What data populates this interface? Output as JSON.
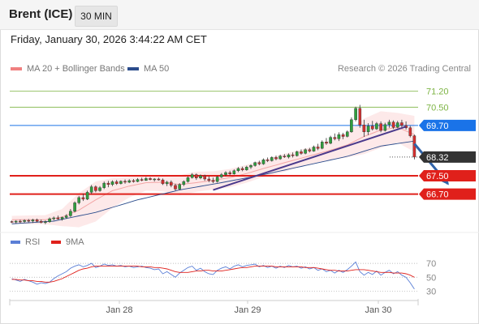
{
  "header": {
    "title": "Brent (ICE)",
    "interval": "30 MIN"
  },
  "datetime": "Friday, January 30, 2026 3:44:22 AM CET",
  "legend": {
    "bollinger": {
      "label": "MA 20 + Bollinger Bands",
      "color": "#f08080"
    },
    "ma50": {
      "label": "MA 50",
      "color": "#2b4c8c"
    }
  },
  "copyright": "Research © 2026 Trading Central",
  "rsi_legend": {
    "rsi": {
      "label": "RSI",
      "color": "#5b7fd6"
    },
    "ma9": {
      "label": "9MA",
      "color": "#e0201b"
    }
  },
  "chart_data": [
    {
      "type": "candlestick",
      "title": "",
      "x_ticks": [
        "Jan 28",
        "Jan 29",
        "Jan 30"
      ],
      "ylim": [
        65.2,
        71.75
      ],
      "levels": [
        {
          "label": "71.20",
          "value": 71.2,
          "kind": "resistance-thin",
          "color": "#7cb342",
          "tag_bg": "",
          "tag_color": "#7cb342"
        },
        {
          "label": "70.50",
          "value": 70.5,
          "kind": "resistance-thin",
          "color": "#7cb342",
          "tag_bg": "",
          "tag_color": "#7cb342"
        },
        {
          "label": "69.70",
          "value": 69.7,
          "kind": "pivot",
          "color": "#1a73e8",
          "tag_bg": "#1a73e8",
          "tag_color": "#ffffff"
        },
        {
          "label": "68.32",
          "value": 68.32,
          "kind": "last-price",
          "color": "#333333",
          "tag_bg": "#333333",
          "tag_color": "#ffffff"
        },
        {
          "label": "67.50",
          "value": 67.5,
          "kind": "support",
          "color": "#e0201b",
          "tag_bg": "#e0201b",
          "tag_color": "#ffffff"
        },
        {
          "label": "66.70",
          "value": 66.7,
          "kind": "support",
          "color": "#e0201b",
          "tag_bg": "#e0201b",
          "tag_color": "#ffffff"
        }
      ],
      "candles": [
        [
          65.5,
          65.54,
          65.44,
          65.48
        ],
        [
          65.48,
          65.56,
          65.41,
          65.52
        ],
        [
          65.52,
          65.58,
          65.43,
          65.5
        ],
        [
          65.5,
          65.6,
          65.45,
          65.55
        ],
        [
          65.55,
          65.61,
          65.47,
          65.52
        ],
        [
          65.52,
          65.62,
          65.44,
          65.57
        ],
        [
          65.57,
          65.63,
          65.46,
          65.51
        ],
        [
          65.51,
          65.59,
          65.42,
          65.46
        ],
        [
          65.46,
          65.55,
          65.38,
          65.49
        ],
        [
          65.49,
          65.68,
          65.45,
          65.62
        ],
        [
          65.62,
          65.72,
          65.55,
          65.66
        ],
        [
          65.66,
          65.76,
          65.58,
          65.61
        ],
        [
          65.61,
          65.72,
          65.54,
          65.68
        ],
        [
          65.68,
          65.82,
          65.62,
          65.75
        ],
        [
          65.75,
          66.05,
          65.7,
          65.95
        ],
        [
          65.95,
          66.38,
          65.9,
          66.32
        ],
        [
          66.32,
          66.62,
          66.25,
          66.55
        ],
        [
          66.55,
          66.72,
          66.4,
          66.48
        ],
        [
          66.48,
          66.85,
          66.44,
          66.78
        ],
        [
          66.78,
          67.1,
          66.7,
          67.02
        ],
        [
          67.02,
          67.08,
          66.78,
          66.85
        ],
        [
          66.85,
          67.05,
          66.8,
          66.98
        ],
        [
          66.98,
          67.25,
          66.92,
          67.18
        ],
        [
          67.18,
          67.28,
          67.0,
          67.12
        ],
        [
          67.12,
          67.3,
          67.05,
          67.24
        ],
        [
          67.24,
          67.32,
          67.1,
          67.16
        ],
        [
          67.16,
          67.3,
          67.12,
          67.26
        ],
        [
          67.26,
          67.34,
          67.15,
          67.22
        ],
        [
          67.22,
          67.35,
          67.18,
          67.29
        ],
        [
          67.29,
          67.36,
          67.2,
          67.25
        ],
        [
          67.25,
          67.4,
          67.22,
          67.34
        ],
        [
          67.34,
          67.42,
          67.26,
          67.3
        ],
        [
          67.3,
          67.45,
          67.28,
          67.38
        ],
        [
          67.38,
          67.44,
          67.3,
          67.33
        ],
        [
          67.33,
          67.4,
          67.25,
          67.36
        ],
        [
          67.36,
          67.42,
          67.29,
          67.32
        ],
        [
          67.32,
          67.38,
          67.1,
          67.15
        ],
        [
          67.15,
          67.28,
          67.05,
          67.22
        ],
        [
          67.22,
          67.3,
          67.0,
          67.08
        ],
        [
          67.08,
          67.15,
          66.85,
          66.92
        ],
        [
          66.92,
          67.18,
          66.88,
          67.12
        ],
        [
          67.12,
          67.3,
          67.05,
          67.25
        ],
        [
          67.25,
          67.48,
          67.2,
          67.42
        ],
        [
          67.42,
          67.62,
          67.38,
          67.55
        ],
        [
          67.55,
          67.6,
          67.32,
          67.4
        ],
        [
          67.4,
          67.56,
          67.35,
          67.5
        ],
        [
          67.5,
          67.55,
          67.28,
          67.36
        ],
        [
          67.36,
          67.48,
          67.22,
          67.3
        ],
        [
          67.3,
          67.42,
          67.18,
          67.25
        ],
        [
          67.25,
          67.5,
          67.2,
          67.45
        ],
        [
          67.45,
          67.62,
          67.4,
          67.55
        ],
        [
          67.55,
          67.7,
          67.48,
          67.64
        ],
        [
          67.64,
          67.72,
          67.52,
          67.58
        ],
        [
          67.58,
          67.78,
          67.55,
          67.72
        ],
        [
          67.72,
          67.88,
          67.66,
          67.82
        ],
        [
          67.82,
          67.9,
          67.7,
          67.76
        ],
        [
          67.76,
          67.94,
          67.72,
          67.88
        ],
        [
          67.88,
          68.0,
          67.8,
          67.95
        ],
        [
          67.95,
          68.12,
          67.9,
          68.08
        ],
        [
          68.08,
          68.16,
          67.96,
          68.02
        ],
        [
          68.02,
          68.26,
          67.98,
          68.2
        ],
        [
          68.2,
          68.3,
          68.1,
          68.16
        ],
        [
          68.16,
          68.35,
          68.12,
          68.3
        ],
        [
          68.3,
          68.38,
          68.18,
          68.24
        ],
        [
          68.24,
          68.42,
          68.2,
          68.36
        ],
        [
          68.36,
          68.45,
          68.28,
          68.32
        ],
        [
          68.32,
          68.48,
          68.26,
          68.42
        ],
        [
          68.42,
          68.52,
          68.3,
          68.38
        ],
        [
          68.38,
          68.6,
          68.34,
          68.55
        ],
        [
          68.55,
          68.65,
          68.42,
          68.48
        ],
        [
          68.48,
          68.7,
          68.44,
          68.64
        ],
        [
          68.64,
          68.72,
          68.52,
          68.58
        ],
        [
          68.58,
          68.82,
          68.55,
          68.76
        ],
        [
          68.76,
          68.9,
          68.62,
          68.7
        ],
        [
          68.7,
          69.05,
          68.66,
          68.98
        ],
        [
          68.98,
          69.15,
          68.85,
          68.92
        ],
        [
          68.92,
          69.25,
          68.88,
          69.18
        ],
        [
          69.18,
          69.35,
          69.05,
          69.12
        ],
        [
          69.12,
          69.4,
          69.02,
          69.3
        ],
        [
          69.3,
          69.38,
          69.1,
          69.22
        ],
        [
          69.22,
          69.48,
          69.18,
          69.42
        ],
        [
          69.42,
          70.05,
          69.38,
          69.95
        ],
        [
          69.95,
          70.52,
          69.88,
          70.45
        ],
        [
          70.45,
          70.6,
          69.6,
          69.72
        ],
        [
          69.72,
          69.95,
          69.2,
          69.42
        ],
        [
          69.42,
          69.8,
          69.28,
          69.68
        ],
        [
          69.68,
          69.9,
          69.48,
          69.55
        ],
        [
          69.55,
          69.85,
          69.5,
          69.78
        ],
        [
          69.78,
          69.88,
          69.4,
          69.48
        ],
        [
          69.48,
          69.82,
          69.44,
          69.74
        ],
        [
          69.74,
          69.95,
          69.6,
          69.85
        ],
        [
          69.85,
          69.92,
          69.55,
          69.62
        ],
        [
          69.62,
          69.9,
          69.58,
          69.82
        ],
        [
          69.82,
          69.95,
          69.62,
          69.7
        ],
        [
          69.7,
          69.88,
          69.52,
          69.6
        ],
        [
          69.6,
          69.68,
          69.18,
          69.25
        ],
        [
          69.25,
          69.3,
          68.22,
          68.32
        ]
      ],
      "ma20": [
        [
          0,
          65.58
        ],
        [
          8,
          65.58
        ],
        [
          12,
          65.7
        ],
        [
          16,
          66.0
        ],
        [
          20,
          66.45
        ],
        [
          24,
          66.85
        ],
        [
          28,
          67.05
        ],
        [
          32,
          67.2
        ],
        [
          36,
          67.22
        ],
        [
          40,
          67.12
        ],
        [
          44,
          67.2
        ],
        [
          48,
          67.3
        ],
        [
          52,
          67.42
        ],
        [
          56,
          67.6
        ],
        [
          60,
          67.82
        ],
        [
          64,
          68.02
        ],
        [
          68,
          68.22
        ],
        [
          72,
          68.42
        ],
        [
          76,
          68.62
        ],
        [
          80,
          68.85
        ],
        [
          84,
          69.22
        ],
        [
          88,
          69.5
        ],
        [
          92,
          69.62
        ],
        [
          96,
          69.3
        ]
      ],
      "bb_upper": [
        [
          0,
          65.75
        ],
        [
          8,
          65.78
        ],
        [
          12,
          66.05
        ],
        [
          16,
          66.75
        ],
        [
          20,
          67.25
        ],
        [
          24,
          67.4
        ],
        [
          28,
          67.45
        ],
        [
          32,
          67.48
        ],
        [
          36,
          67.5
        ],
        [
          40,
          67.52
        ],
        [
          44,
          67.68
        ],
        [
          48,
          67.7
        ],
        [
          52,
          67.8
        ],
        [
          56,
          67.98
        ],
        [
          60,
          68.2
        ],
        [
          64,
          68.42
        ],
        [
          68,
          68.6
        ],
        [
          72,
          68.78
        ],
        [
          76,
          69.05
        ],
        [
          80,
          69.4
        ],
        [
          84,
          70.0
        ],
        [
          88,
          70.32
        ],
        [
          92,
          70.25
        ],
        [
          96,
          70.12
        ]
      ],
      "bb_lower": [
        [
          0,
          65.4
        ],
        [
          8,
          65.38
        ],
        [
          12,
          65.3
        ],
        [
          16,
          65.25
        ],
        [
          20,
          65.5
        ],
        [
          24,
          66.1
        ],
        [
          28,
          66.55
        ],
        [
          32,
          66.85
        ],
        [
          36,
          66.82
        ],
        [
          40,
          66.65
        ],
        [
          44,
          66.8
        ],
        [
          48,
          66.9
        ],
        [
          52,
          67.0
        ],
        [
          56,
          67.2
        ],
        [
          60,
          67.45
        ],
        [
          64,
          67.62
        ],
        [
          68,
          67.85
        ],
        [
          72,
          68.05
        ],
        [
          76,
          68.2
        ],
        [
          80,
          68.3
        ],
        [
          84,
          68.45
        ],
        [
          88,
          68.72
        ],
        [
          92,
          68.95
        ],
        [
          96,
          68.55
        ]
      ],
      "ma50": [
        [
          0,
          65.4
        ],
        [
          10,
          65.52
        ],
        [
          20,
          65.9
        ],
        [
          30,
          66.45
        ],
        [
          40,
          66.88
        ],
        [
          50,
          67.2
        ],
        [
          60,
          67.55
        ],
        [
          70,
          67.95
        ],
        [
          80,
          68.35
        ],
        [
          88,
          68.8
        ],
        [
          96,
          69.02
        ]
      ],
      "trend_line": [
        [
          48,
          66.88
        ],
        [
          94,
          69.65
        ]
      ],
      "projection_arrow": [
        [
          96,
          68.9
        ],
        [
          104,
          67.15
        ]
      ]
    },
    {
      "type": "line",
      "title": "",
      "ylim": [
        20,
        90
      ],
      "y_ticks": [
        30,
        50,
        70
      ],
      "series": [
        {
          "name": "RSI",
          "values": [
            48,
            46,
            44,
            47,
            45,
            43,
            40,
            42,
            41,
            43,
            48,
            52,
            55,
            58,
            63,
            66,
            68,
            65,
            67,
            70,
            64,
            66,
            69,
            67,
            68,
            66,
            67,
            65,
            66,
            64,
            65,
            66,
            64,
            63,
            61,
            62,
            55,
            58,
            54,
            50,
            56,
            60,
            64,
            66,
            60,
            63,
            58,
            55,
            54,
            60,
            63,
            65,
            62,
            66,
            68,
            65,
            67,
            68,
            69,
            65,
            67,
            64,
            66,
            63,
            66,
            64,
            67,
            65,
            66,
            63,
            65,
            62,
            64,
            60,
            62,
            58,
            60,
            56,
            60,
            57,
            61,
            66,
            72,
            58,
            53,
            57,
            54,
            59,
            53,
            57,
            60,
            55,
            58,
            53,
            50,
            42,
            33
          ]
        },
        {
          "name": "9MA",
          "values": [
            47,
            47,
            46,
            46,
            45,
            45,
            44,
            44,
            43,
            43,
            44,
            46,
            48,
            51,
            54,
            57,
            60,
            62,
            63,
            65,
            66,
            66,
            66,
            66,
            66,
            66,
            66,
            66,
            66,
            66,
            66,
            65,
            65,
            65,
            64,
            64,
            63,
            62,
            60,
            58,
            57,
            57,
            57,
            58,
            59,
            59,
            60,
            60,
            59,
            59,
            59,
            60,
            61,
            62,
            63,
            64,
            64,
            65,
            66,
            66,
            66,
            66,
            66,
            65,
            65,
            65,
            65,
            65,
            65,
            65,
            64,
            64,
            64,
            63,
            62,
            61,
            60,
            60,
            59,
            59,
            59,
            60,
            61,
            61,
            61,
            60,
            59,
            58,
            57,
            57,
            57,
            56,
            56,
            56,
            55,
            53,
            50
          ]
        }
      ]
    }
  ]
}
